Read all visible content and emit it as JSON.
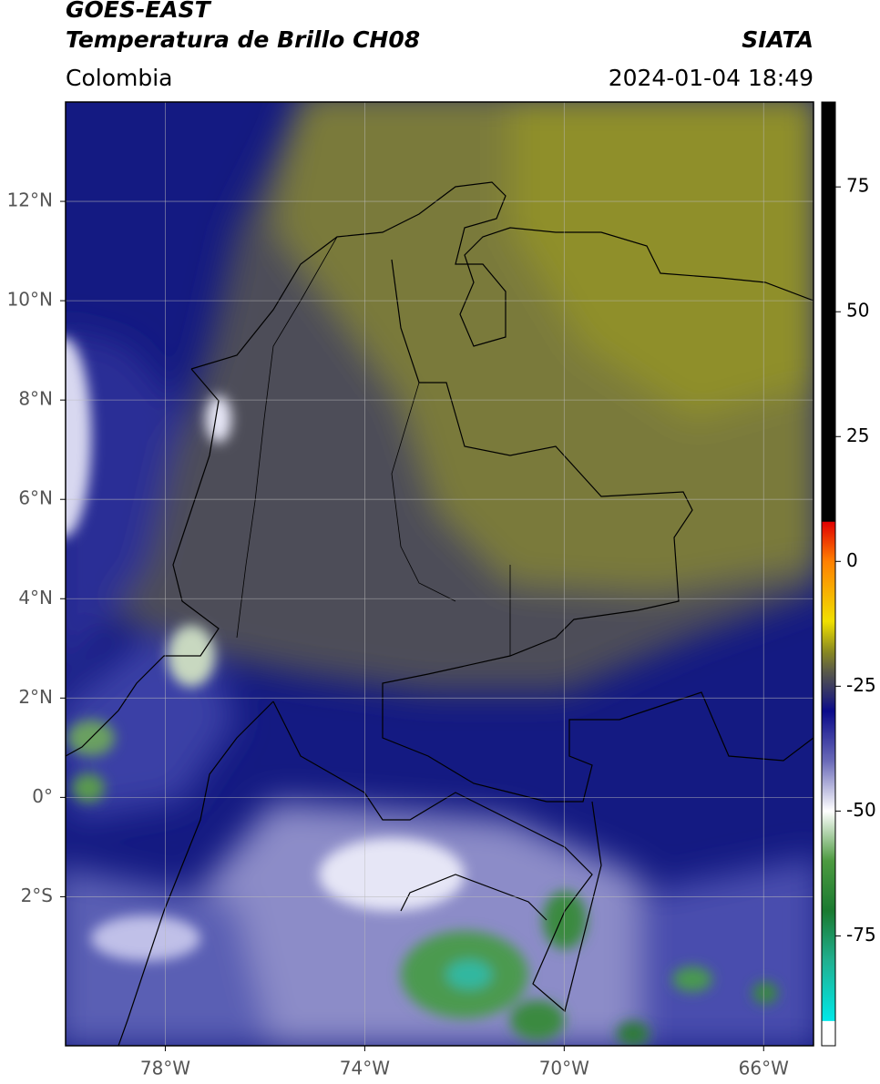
{
  "header": {
    "source": "GOES-EAST",
    "product": "Temperatura de Brillo CH08",
    "region": "Colombia",
    "credit": "SIATA",
    "timestamp": "2024-01-04 18:49"
  },
  "map": {
    "xlim": [
      -80,
      -65
    ],
    "ylim": [
      -5,
      14
    ],
    "xticks": [
      {
        "value": -78,
        "label": "78°W"
      },
      {
        "value": -74,
        "label": "74°W"
      },
      {
        "value": -70,
        "label": "70°W"
      },
      {
        "value": -66,
        "label": "66°W"
      }
    ],
    "yticks": [
      {
        "value": 12,
        "label": "12°N"
      },
      {
        "value": 10,
        "label": "10°N"
      },
      {
        "value": 8,
        "label": "8°N"
      },
      {
        "value": 6,
        "label": "6°N"
      },
      {
        "value": 4,
        "label": "4°N"
      },
      {
        "value": 2,
        "label": "2°N"
      },
      {
        "value": 0,
        "label": "0°"
      },
      {
        "value": -2,
        "label": "2°S"
      }
    ],
    "grid": true
  },
  "colorbar": {
    "lim": [
      -97,
      92
    ],
    "ticks": [
      75,
      50,
      25,
      0,
      -25,
      -50,
      -75
    ],
    "colormap": [
      {
        "value": 92,
        "color": "#000000"
      },
      {
        "value": 8,
        "color": "#000000"
      },
      {
        "value": 7.9,
        "color": "#e00000"
      },
      {
        "value": 0,
        "color": "#ff8000"
      },
      {
        "value": -12,
        "color": "#f0e000"
      },
      {
        "value": -18,
        "color": "#8a8a20"
      },
      {
        "value": -22,
        "color": "#5a5a48"
      },
      {
        "value": -27,
        "color": "#2a2a70"
      },
      {
        "value": -30,
        "color": "#0a0a8a"
      },
      {
        "value": -40,
        "color": "#6a6ab8"
      },
      {
        "value": -50,
        "color": "#ffffff"
      },
      {
        "value": -60,
        "color": "#4c9a40"
      },
      {
        "value": -70,
        "color": "#1a7a30"
      },
      {
        "value": -80,
        "color": "#20b090"
      },
      {
        "value": -92,
        "color": "#00e8e8"
      },
      {
        "value": -92.1,
        "color": "#ffffff"
      },
      {
        "value": -97,
        "color": "#ffffff"
      }
    ]
  }
}
